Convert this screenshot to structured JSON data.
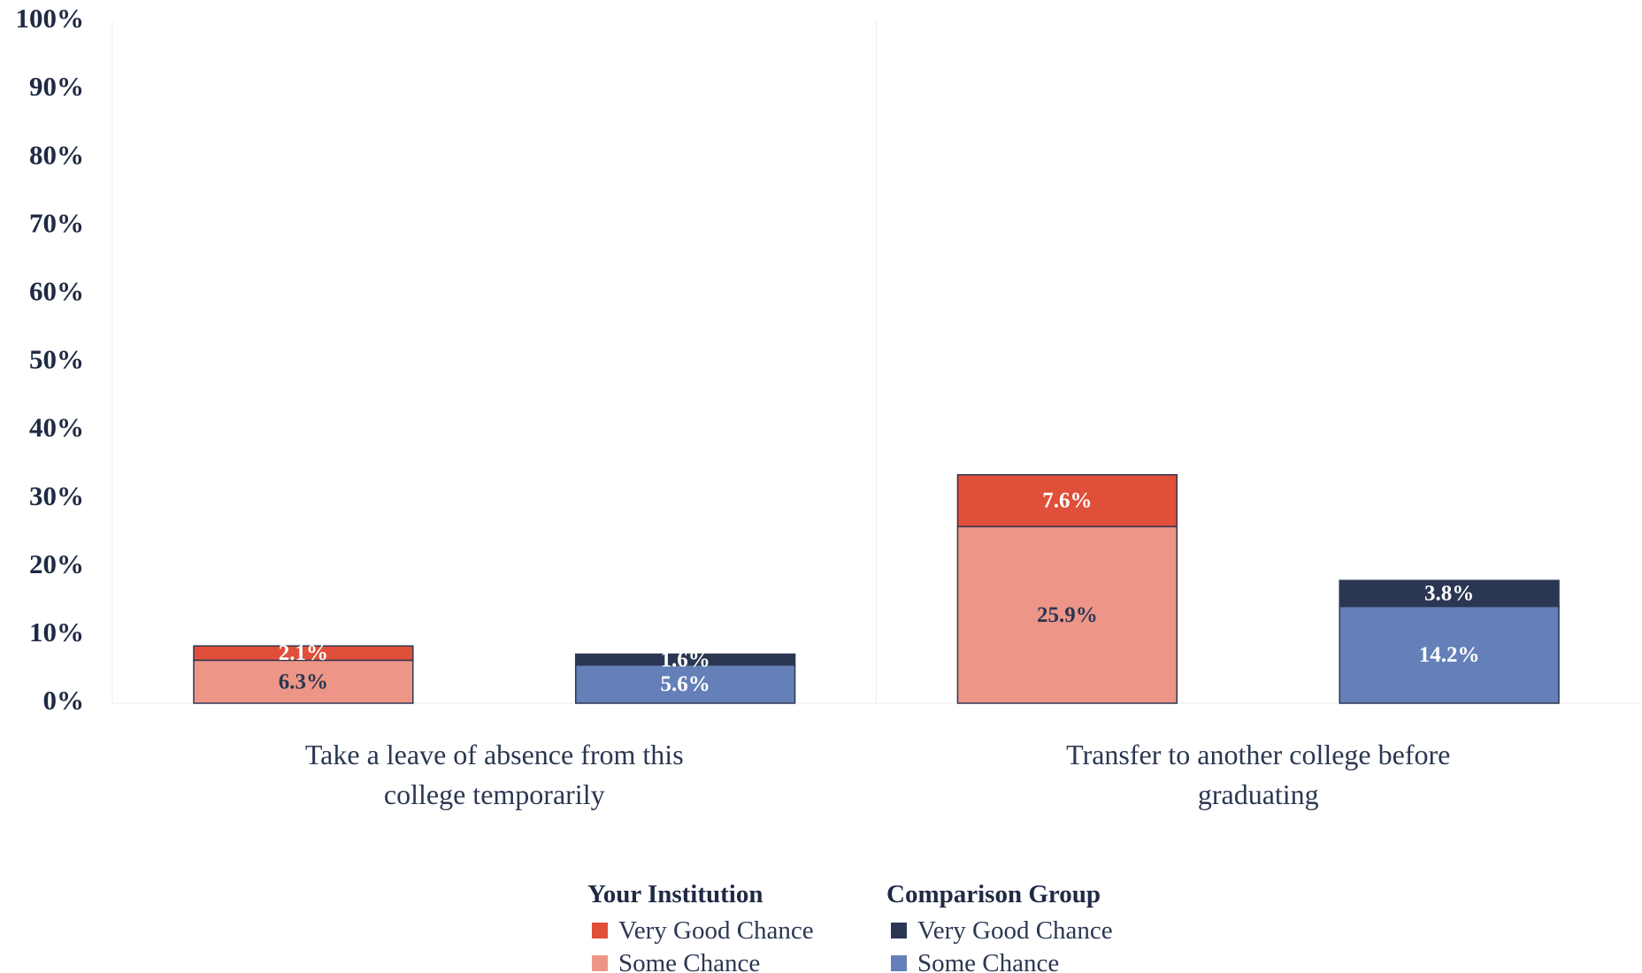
{
  "chart_data": {
    "type": "bar",
    "stacked": true,
    "categories": [
      "Take a leave of absence from this college temporarily",
      "Transfer to another college before graduating"
    ],
    "ylim": [
      0,
      100
    ],
    "yticks": [
      {
        "value": 0,
        "label": "0%"
      },
      {
        "value": 10,
        "label": "10%"
      },
      {
        "value": 20,
        "label": "20%"
      },
      {
        "value": 30,
        "label": "30%"
      },
      {
        "value": 40,
        "label": "40%"
      },
      {
        "value": 50,
        "label": "50%"
      },
      {
        "value": 60,
        "label": "60%"
      },
      {
        "value": 70,
        "label": "70%"
      },
      {
        "value": 80,
        "label": "80%"
      },
      {
        "value": 90,
        "label": "90%"
      },
      {
        "value": 100,
        "label": "100%"
      }
    ],
    "grid": false,
    "groups": [
      {
        "name": "Your Institution",
        "series": [
          {
            "name": "Very Good Chance",
            "color": "#e04f39",
            "values": [
              2.1,
              7.6
            ],
            "value_labels": [
              "2.1%",
              "7.6%"
            ]
          },
          {
            "name": "Some Chance",
            "color": "#ed9687",
            "values": [
              6.3,
              25.9
            ],
            "value_labels": [
              "6.3%",
              "25.9%"
            ]
          }
        ]
      },
      {
        "name": "Comparison Group",
        "series": [
          {
            "name": "Very Good Chance",
            "color": "#2b3752",
            "values": [
              1.6,
              3.8
            ],
            "value_labels": [
              "1.6%",
              "3.8%"
            ]
          },
          {
            "name": "Some Chance",
            "color": "#6580b8",
            "values": [
              5.6,
              14.2
            ],
            "value_labels": [
              "5.6%",
              "14.2%"
            ]
          }
        ]
      }
    ]
  }
}
